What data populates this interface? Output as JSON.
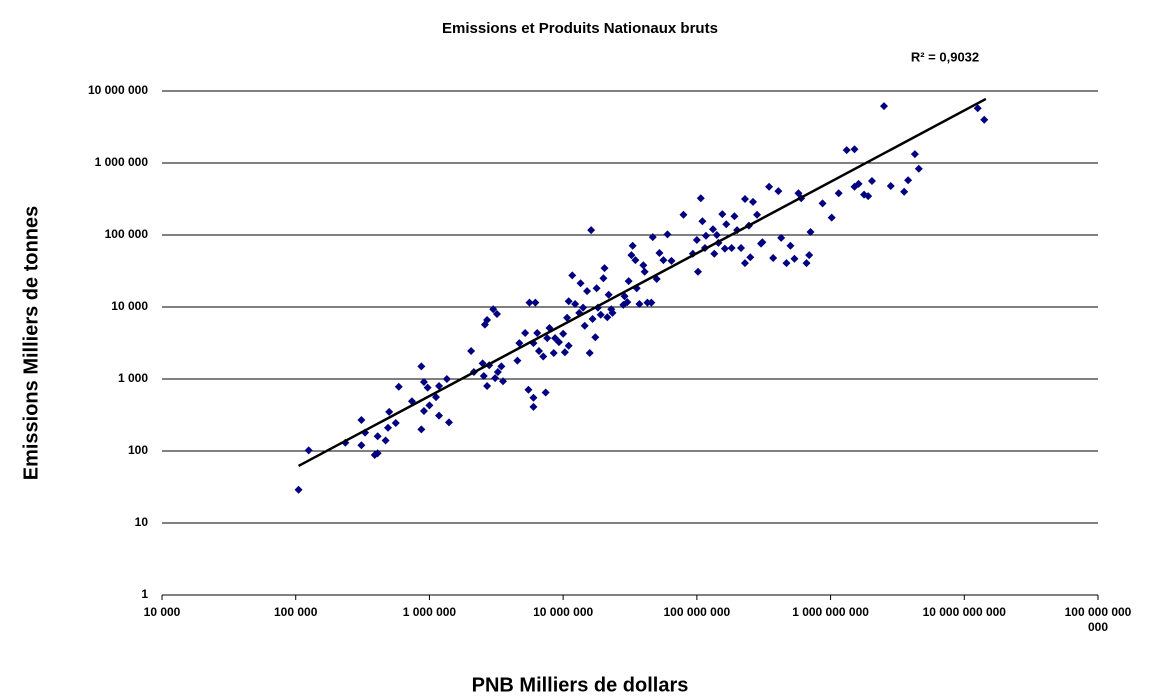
{
  "chart_data": {
    "type": "scatter",
    "title": "Emissions et Produits Nationaux bruts",
    "annotation": "R² = 0,9032",
    "x_label": "PNB Milliers de dollars",
    "y_label": "Emissions Milliers de tonnes",
    "x_log": true,
    "y_log": true,
    "grid": true,
    "color": "#000080",
    "xlim": [
      10000,
      100000000000
    ],
    "ylim": [
      1,
      10000000
    ],
    "xticks": [
      {
        "value": 10000,
        "label": "10 000"
      },
      {
        "value": 100000,
        "label": "100 000"
      },
      {
        "value": 1000000,
        "label": "1 000 000"
      },
      {
        "value": 10000000,
        "label": "10 000 000"
      },
      {
        "value": 100000000,
        "label": "100 000 000"
      },
      {
        "value": 1000000000,
        "label": "1 000 000 000"
      },
      {
        "value": 10000000000,
        "label": "10 000 000 000"
      },
      {
        "value": 100000000000,
        "label": "100 000 000 000"
      }
    ],
    "yticks": [
      1,
      10,
      100,
      {
        "value": 1000,
        "label": "1 000"
      },
      {
        "value": 10000,
        "label": "10 000"
      },
      {
        "value": 100000,
        "label": "100 000"
      },
      {
        "value": 1000000,
        "label": "1 000 000"
      },
      {
        "value": 10000000,
        "label": "10 000 000"
      }
    ],
    "trendline": {
      "color": "#000000",
      "x": [
        105000,
        14500000000
      ],
      "y": [
        62,
        7760000
      ]
    },
    "x": [
      105000,
      125000,
      235000,
      310000,
      310000,
      330000,
      390000,
      410000,
      410000,
      470000,
      490000,
      500000,
      560000,
      590000,
      740000,
      870000,
      870000,
      910000,
      910000,
      970000,
      1000000,
      1120000,
      1180000,
      1180000,
      1350000,
      1400000,
      2050000,
      2150000,
      2500000,
      2550000,
      2600000,
      2700000,
      2700000,
      2800000,
      3000000,
      3200000,
      3250000,
      3100000,
      3450000,
      3550000,
      4550000,
      4700000,
      5200000,
      5500000,
      5600000,
      6000000,
      6000000,
      6000000,
      6200000,
      6400000,
      6600000,
      7100000,
      7400000,
      7600000,
      7900000,
      8500000,
      8700000,
      9300000,
      10000000,
      10300000,
      10700000,
      11000000,
      11000000,
      11700000,
      12300000,
      13200000,
      13500000,
      14100000,
      14500000,
      15100000,
      15800000,
      16200000,
      16600000,
      17400000,
      17800000,
      18200000,
      19100000,
      20000000,
      20400000,
      21400000,
      21900000,
      22900000,
      23400000,
      28200000,
      28800000,
      30200000,
      30900000,
      32400000,
      33100000,
      34700000,
      35500000,
      37200000,
      39800000,
      40700000,
      42700000,
      45700000,
      46800000,
      50100000,
      52500000,
      56200000,
      60300000,
      64600000,
      79400000,
      93300000,
      100000000,
      102000000,
      107000000,
      110000000,
      115000000,
      117000000,
      132000000,
      135000000,
      141000000,
      145000000,
      155000000,
      162000000,
      166000000,
      182000000,
      191000000,
      200000000,
      214000000,
      229000000,
      229000000,
      245000000,
      251000000,
      263000000,
      282000000,
      302000000,
      309000000,
      347000000,
      372000000,
      407000000,
      427000000,
      468000000,
      501000000,
      537000000,
      575000000,
      603000000,
      661000000,
      692000000,
      708000000,
      871000000,
      1020000000,
      1150000000,
      1320000000,
      1510000000,
      1510000000,
      1620000000,
      1780000000,
      1910000000,
      2040000000,
      2820000000,
      3550000000,
      3800000000,
      4570000000,
      4270000000,
      2510000000,
      12600000000,
      14100000000
    ],
    "values": [
      29,
      102,
      130,
      270,
      120,
      180,
      88,
      93,
      160,
      140,
      210,
      350,
      245,
      780,
      490,
      200,
      1500,
      910,
      360,
      760,
      430,
      560,
      800,
      310,
      1000,
      250,
      2450,
      1250,
      1650,
      1100,
      5700,
      6600,
      800,
      1550,
      9300,
      8000,
      1250,
      1030,
      1500,
      930,
      1800,
      3150,
      4350,
      710,
      11500,
      550,
      410,
      3150,
      11500,
      4350,
      2450,
      2050,
      650,
      3700,
      5100,
      2300,
      3700,
      3250,
      4250,
      2350,
      7100,
      12000,
      2900,
      27500,
      11000,
      8300,
      21400,
      9800,
      5500,
      16600,
      2300,
      117000,
      6800,
      3800,
      18200,
      9800,
      7800,
      25100,
      34700,
      7200,
      14800,
      9300,
      8300,
      10700,
      14100,
      11700,
      22900,
      52500,
      70800,
      44700,
      18200,
      11000,
      38000,
      30900,
      11500,
      11500,
      93300,
      24500,
      56200,
      44700,
      102000,
      43700,
      191000,
      55000,
      85100,
      30900,
      324000,
      155000,
      66100,
      97700,
      120000,
      55000,
      100000,
      77600,
      195000,
      64600,
      141000,
      66100,
      182000,
      117000,
      66100,
      316000,
      40700,
      135000,
      49000,
      288000,
      191000,
      75900,
      79400,
      468000,
      47900,
      407000,
      91200,
      40700,
      70800,
      46800,
      380000,
      324000,
      40700,
      52500,
      110000,
      275000,
      174000,
      380000,
      1510000,
      1550000,
      468000,
      513000,
      363000,
      347000,
      562000,
      479000,
      398000,
      575000,
      832000,
      1330000,
      6170000,
      5750000,
      3980000
    ]
  }
}
